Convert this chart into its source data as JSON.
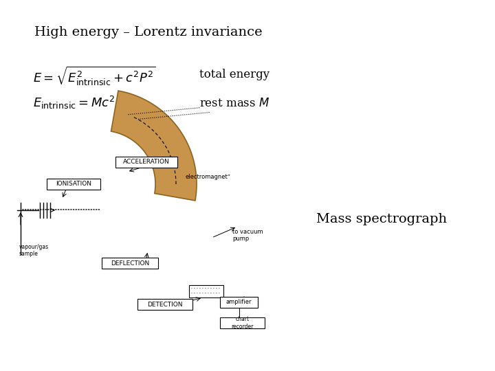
{
  "title": "High energy – Lorentz invariance",
  "formula1": "$E = \\sqrt{E_{\\rm intrinsic}^2 + c^2 P^2}$",
  "formula1_label": "total energy",
  "formula2": "$E_{\\rm intrinsic} = Mc^2$",
  "formula2_label": "rest mass $M$",
  "diagram_label": "Mass spectrograph",
  "bg_color": "#ffffff",
  "text_color": "#000000",
  "magnet_color": "#c8934a",
  "magnet_edge": "#8b6520",
  "box_color": "#ffffff",
  "box_edge": "#000000"
}
